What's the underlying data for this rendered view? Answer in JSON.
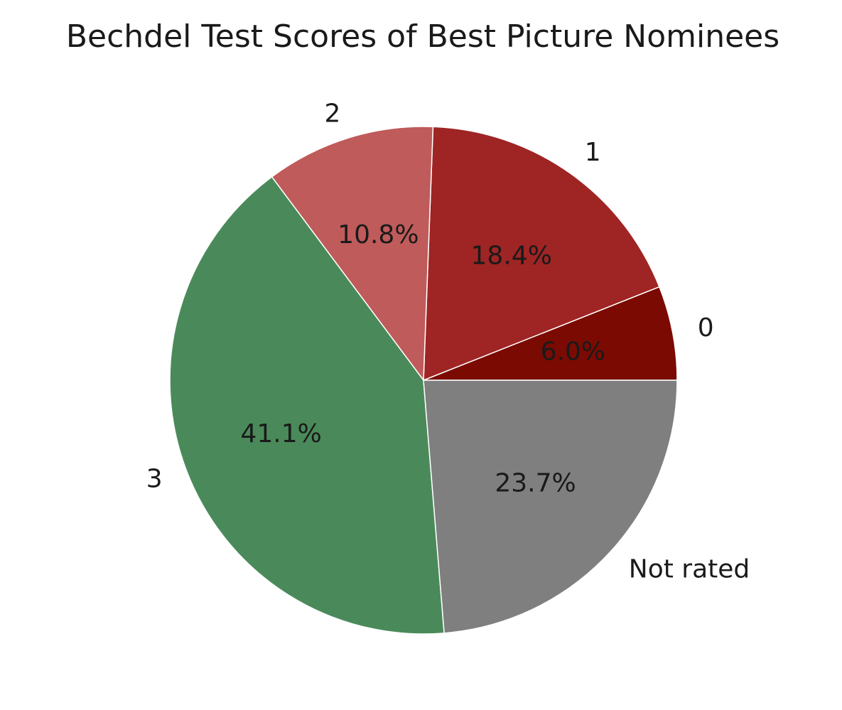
{
  "chart_data": {
    "type": "pie",
    "title": "Bechdel Test Scores of Best Picture Nominees",
    "start_angle_deg": 0,
    "direction": "counterclockwise",
    "slices": [
      {
        "label": "0",
        "value": 6.0,
        "pct_label": "6.0%",
        "color": "#7b0a02"
      },
      {
        "label": "1",
        "value": 18.4,
        "pct_label": "18.4%",
        "color": "#9f2424"
      },
      {
        "label": "2",
        "value": 10.8,
        "pct_label": "10.8%",
        "color": "#bf5b5a"
      },
      {
        "label": "3",
        "value": 41.1,
        "pct_label": "41.1%",
        "color": "#4a8a5a"
      },
      {
        "label": "Not rated",
        "value": 23.7,
        "pct_label": "23.7%",
        "color": "#7f7f7f"
      }
    ]
  }
}
